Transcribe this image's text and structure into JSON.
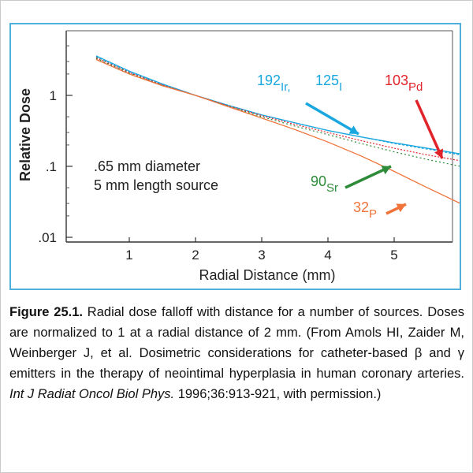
{
  "chart_data": {
    "type": "line",
    "xlabel": "Radial Distance (mm)",
    "ylabel": "Relative Dose",
    "x_ticks": [
      1,
      2,
      3,
      4,
      5
    ],
    "y_ticks": [
      {
        "value": 1,
        "label": "1"
      },
      {
        "value": 0.1,
        "label": ".1"
      },
      {
        "value": 0.01,
        "label": ".01"
      }
    ],
    "y_scale": "log",
    "xlim": [
      0,
      6
    ],
    "ylim": [
      0.01,
      6
    ],
    "grid": false,
    "annotations": [
      {
        "line1": ".65 mm diameter",
        "line2": "5 mm length source"
      }
    ],
    "series": [
      {
        "name": "192Ir",
        "label_main": "192",
        "label_sub": "Ir,",
        "color": "#1aa7df",
        "x": [
          0.5,
          1,
          1.5,
          2,
          2.5,
          3,
          3.5,
          4,
          4.5,
          5,
          5.5,
          6
        ],
        "y": [
          3.6,
          2.2,
          1.45,
          1.0,
          0.72,
          0.53,
          0.41,
          0.32,
          0.26,
          0.215,
          0.18,
          0.15
        ]
      },
      {
        "name": "125I",
        "label_main": "125",
        "label_sub": "I",
        "color": "#1aa7df",
        "x": [
          0.5,
          1,
          1.5,
          2,
          2.5,
          3,
          3.5,
          4,
          4.5,
          5,
          5.5,
          6
        ],
        "y": [
          3.5,
          2.15,
          1.42,
          1.0,
          0.72,
          0.53,
          0.41,
          0.32,
          0.26,
          0.21,
          0.175,
          0.145
        ]
      },
      {
        "name": "103Pd",
        "label_main": "103",
        "label_sub": "Pd",
        "color": "#e0242a",
        "x": [
          0.5,
          1,
          1.5,
          2,
          2.5,
          3,
          3.5,
          4,
          4.5,
          5,
          5.5,
          6
        ],
        "y": [
          3.4,
          2.1,
          1.4,
          1.0,
          0.71,
          0.52,
          0.39,
          0.3,
          0.23,
          0.18,
          0.145,
          0.12
        ]
      },
      {
        "name": "90Sr",
        "label_main": "90",
        "label_sub": "Sr",
        "color": "#2e8b3a",
        "x": [
          0.5,
          1,
          1.5,
          2,
          2.5,
          3,
          3.5,
          4,
          4.5,
          5,
          5.5,
          6
        ],
        "y": [
          3.3,
          2.05,
          1.38,
          1.0,
          0.7,
          0.5,
          0.37,
          0.28,
          0.21,
          0.16,
          0.125,
          0.1
        ]
      },
      {
        "name": "32P",
        "label_main": "32",
        "label_sub": "P",
        "color": "#f0733a",
        "x": [
          0.5,
          1,
          1.5,
          2,
          2.5,
          3,
          3.5,
          4,
          4.5,
          5,
          5.5,
          6
        ],
        "y": [
          3.2,
          2.0,
          1.37,
          1.0,
          0.69,
          0.48,
          0.33,
          0.22,
          0.14,
          0.085,
          0.05,
          0.03
        ]
      }
    ]
  },
  "caption": {
    "label": "Figure 25.1.",
    "text": " Radial dose falloff with distance for a number of sources. Doses are normalized to 1 at a radial distance of 2 mm. (From Amols HI, Zaider M, Weinberger J, et al. Dosimetric considerations for catheter-based β and γ emitters in the therapy of neointimal hyperplasia in human coronary arteries. ",
    "journal": "Int J Radiat Oncol Biol Phys.",
    "tail": " 1996;36:913-921, with permission.)"
  },
  "colors": {
    "frame": "#4fb0dc",
    "ir_i": "#1aa7df",
    "pd": "#e0242a",
    "sr": "#2e8b3a",
    "p": "#f0733a"
  }
}
